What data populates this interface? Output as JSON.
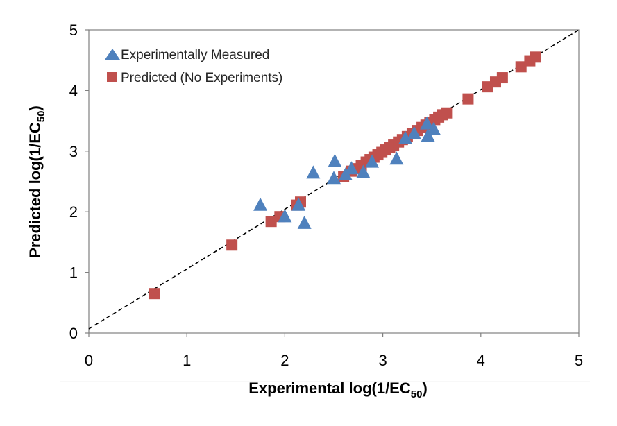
{
  "chart_data": {
    "type": "scatter",
    "title": "",
    "xlabel": {
      "text": "Experimental log(1/EC",
      "subscript": "50",
      "suffix": ")"
    },
    "ylabel": {
      "text": "Predicted log(1/EC",
      "subscript": "50",
      "suffix": ")"
    },
    "xlim": [
      0,
      5
    ],
    "ylim": [
      0,
      5
    ],
    "x_ticks": [
      "0",
      "1",
      "2",
      "3",
      "4",
      "5"
    ],
    "y_ticks": [
      "0",
      "1",
      "2",
      "3",
      "4",
      "5"
    ],
    "grid": false,
    "legend_position": "top-left",
    "reference_line": {
      "style": "dashed",
      "color": "#000000",
      "from": [
        0,
        0.07
      ],
      "to": [
        5,
        5
      ]
    },
    "series": [
      {
        "name": "Experimentally Measured",
        "marker": "triangle",
        "color": "#4F81BD",
        "points": [
          [
            1.75,
            2.12
          ],
          [
            2.0,
            1.93
          ],
          [
            2.14,
            2.12
          ],
          [
            2.2,
            1.82
          ],
          [
            2.29,
            2.65
          ],
          [
            2.51,
            2.84
          ],
          [
            2.5,
            2.56
          ],
          [
            2.62,
            2.62
          ],
          [
            2.68,
            2.72
          ],
          [
            2.8,
            2.66
          ],
          [
            2.89,
            2.83
          ],
          [
            3.14,
            2.88
          ],
          [
            3.23,
            3.22
          ],
          [
            3.46,
            3.26
          ],
          [
            3.52,
            3.37
          ],
          [
            3.45,
            3.46
          ],
          [
            3.32,
            3.3
          ]
        ]
      },
      {
        "name": "Predicted (No Experiments)",
        "marker": "square",
        "color": "#C0504D",
        "points": [
          [
            0.67,
            0.65
          ],
          [
            1.46,
            1.45
          ],
          [
            1.86,
            1.84
          ],
          [
            1.95,
            1.92
          ],
          [
            2.12,
            2.11
          ],
          [
            2.16,
            2.16
          ],
          [
            2.6,
            2.58
          ],
          [
            2.68,
            2.67
          ],
          [
            2.72,
            2.71
          ],
          [
            2.78,
            2.76
          ],
          [
            2.83,
            2.82
          ],
          [
            2.87,
            2.86
          ],
          [
            2.91,
            2.9
          ],
          [
            2.95,
            2.94
          ],
          [
            2.99,
            2.98
          ],
          [
            3.03,
            3.02
          ],
          [
            3.07,
            3.06
          ],
          [
            3.11,
            3.1
          ],
          [
            3.16,
            3.15
          ],
          [
            3.2,
            3.19
          ],
          [
            3.25,
            3.24
          ],
          [
            3.3,
            3.29
          ],
          [
            3.35,
            3.34
          ],
          [
            3.4,
            3.39
          ],
          [
            3.44,
            3.43
          ],
          [
            3.48,
            3.47
          ],
          [
            3.53,
            3.52
          ],
          [
            3.57,
            3.56
          ],
          [
            3.61,
            3.6
          ],
          [
            3.65,
            3.63
          ],
          [
            3.87,
            3.86
          ],
          [
            4.07,
            4.06
          ],
          [
            4.15,
            4.14
          ],
          [
            4.22,
            4.21
          ],
          [
            4.41,
            4.39
          ],
          [
            4.5,
            4.49
          ],
          [
            4.56,
            4.55
          ]
        ]
      }
    ]
  }
}
